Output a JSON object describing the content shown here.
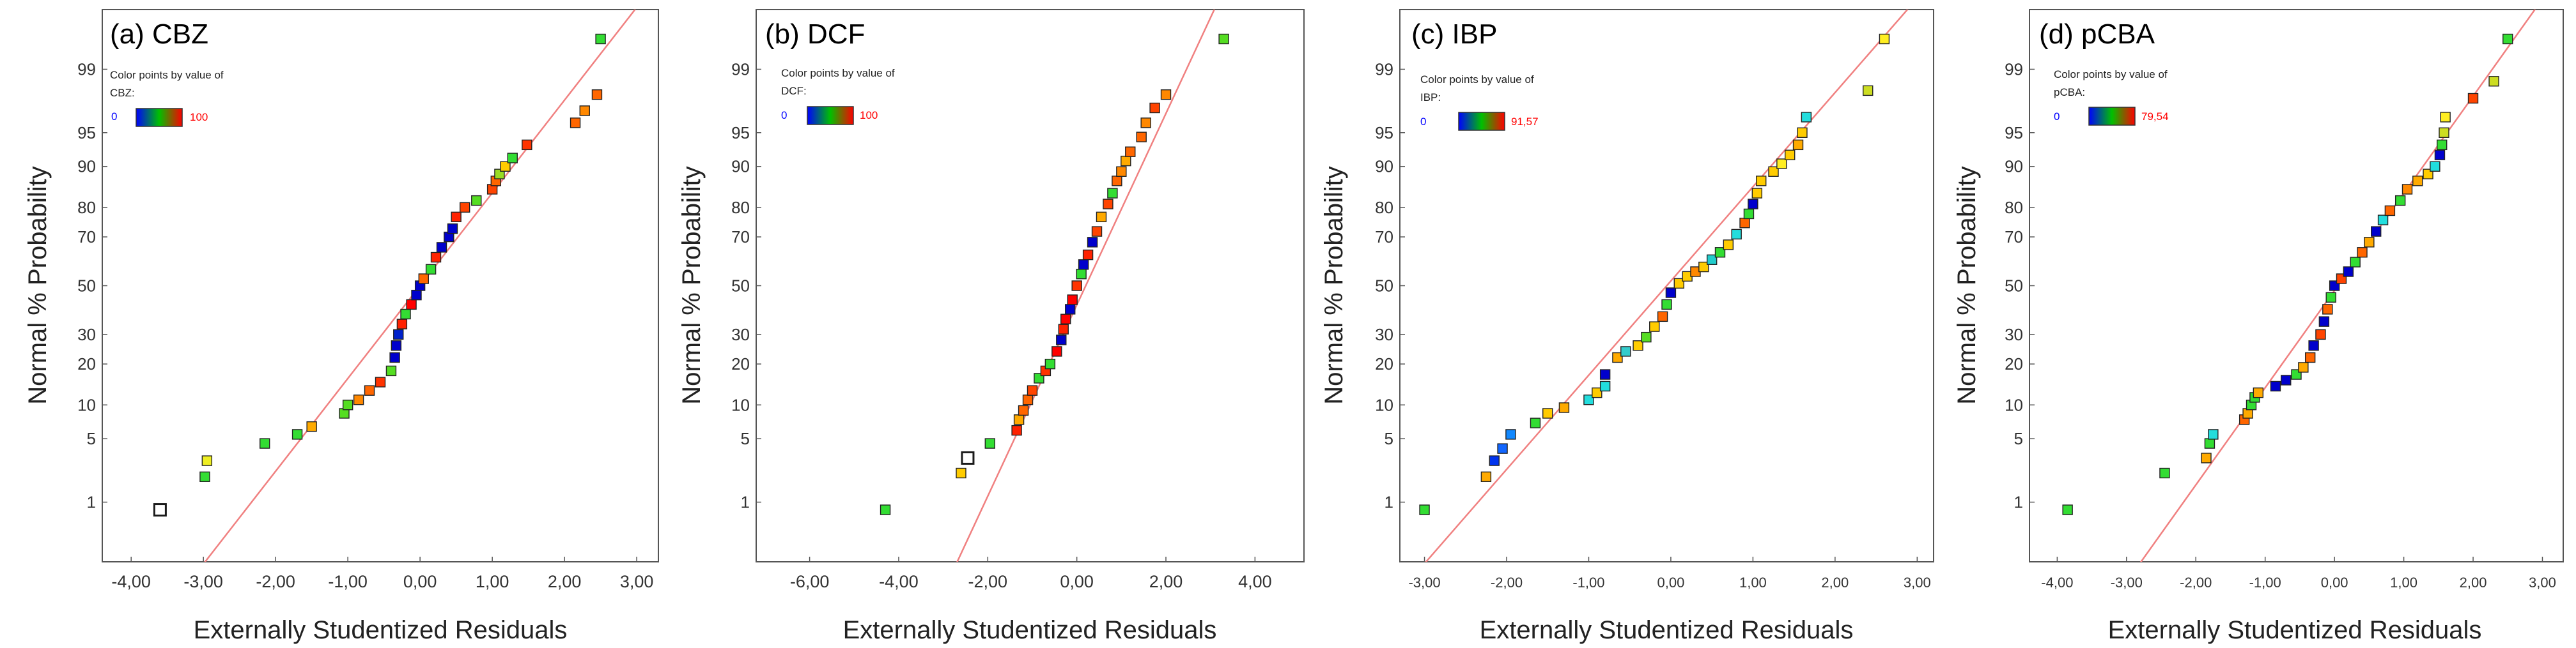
{
  "colors": {
    "ref_line": "#f08080",
    "frame": "#555555",
    "low_label": "#0000ff",
    "high_label": "#ff0000",
    "gradient": [
      "#0000ff",
      "#00c000",
      "#ff0000"
    ]
  },
  "chart_data": [
    {
      "type": "scatter",
      "title": "(a) CBZ",
      "xlabel": "Externally Studentized Residuals",
      "ylabel": "Normal % Probability",
      "xlim": [
        -4.4,
        3.3
      ],
      "x_ticks": [
        -4,
        -3,
        -2,
        -1,
        0,
        1,
        2,
        3
      ],
      "x_tick_labels": [
        "-4,00",
        "-3,00",
        "-2,00",
        "-1,00",
        "0,00",
        "1,00",
        "2,00",
        "3,00"
      ],
      "y_ticks": [
        1,
        5,
        10,
        20,
        30,
        50,
        70,
        80,
        90,
        95,
        99
      ],
      "y_tick_labels": [
        "1",
        "5",
        "10",
        "20",
        "30",
        "50",
        "70",
        "80",
        "90",
        "95",
        "99"
      ],
      "legend": {
        "title_line1": "Color points by value of",
        "title_line2": "CBZ:",
        "min_label": "0",
        "max_label": "100"
      },
      "reference_line": [
        [
          -3.3,
          0.05
        ],
        [
          3.3,
          99.95
        ]
      ],
      "points": [
        {
          "x": -3.6,
          "p": 0.8,
          "c": "hollow"
        },
        {
          "x": -2.98,
          "p": 2.0,
          "c": "#33dd33"
        },
        {
          "x": -2.95,
          "p": 3.0,
          "c": "#eeee22"
        },
        {
          "x": -2.15,
          "p": 4.5,
          "c": "#33dd33"
        },
        {
          "x": -1.7,
          "p": 5.5,
          "c": "#33dd33"
        },
        {
          "x": -1.5,
          "p": 6.5,
          "c": "#ffaa00"
        },
        {
          "x": -1.05,
          "p": 8.5,
          "c": "#55dd22"
        },
        {
          "x": -1.0,
          "p": 10.0,
          "c": "#55dd22"
        },
        {
          "x": -0.85,
          "p": 11.0,
          "c": "#ff8800"
        },
        {
          "x": -0.7,
          "p": 13.0,
          "c": "#ff6600"
        },
        {
          "x": -0.55,
          "p": 15.0,
          "c": "#ff3300"
        },
        {
          "x": -0.4,
          "p": 18.0,
          "c": "#55dd22"
        },
        {
          "x": -0.35,
          "p": 22.0,
          "c": "#0000cc"
        },
        {
          "x": -0.33,
          "p": 26.0,
          "c": "#0000cc"
        },
        {
          "x": -0.3,
          "p": 30.0,
          "c": "#0022cc"
        },
        {
          "x": -0.25,
          "p": 34.0,
          "c": "#ff2200"
        },
        {
          "x": -0.2,
          "p": 38.0,
          "c": "#33dd33"
        },
        {
          "x": -0.12,
          "p": 42.0,
          "c": "#ff0000"
        },
        {
          "x": -0.05,
          "p": 46.0,
          "c": "#0000cc"
        },
        {
          "x": 0.0,
          "p": 50.0,
          "c": "#0000cc"
        },
        {
          "x": 0.05,
          "p": 53.0,
          "c": "#ff6600"
        },
        {
          "x": 0.15,
          "p": 57.0,
          "c": "#33dd33"
        },
        {
          "x": 0.22,
          "p": 62.0,
          "c": "#ff2200"
        },
        {
          "x": 0.3,
          "p": 66.0,
          "c": "#0000cc"
        },
        {
          "x": 0.4,
          "p": 70.0,
          "c": "#0000cc"
        },
        {
          "x": 0.45,
          "p": 73.0,
          "c": "#0000cc"
        },
        {
          "x": 0.5,
          "p": 77.0,
          "c": "#ff2200"
        },
        {
          "x": 0.62,
          "p": 80.0,
          "c": "#ff4400"
        },
        {
          "x": 0.78,
          "p": 82.0,
          "c": "#55dd22"
        },
        {
          "x": 1.0,
          "p": 85.0,
          "c": "#ff4400"
        },
        {
          "x": 1.05,
          "p": 87.0,
          "c": "#ff6600"
        },
        {
          "x": 1.1,
          "p": 88.5,
          "c": "#99dd22"
        },
        {
          "x": 1.18,
          "p": 90.0,
          "c": "#ffcc00"
        },
        {
          "x": 1.28,
          "p": 91.5,
          "c": "#33dd33"
        },
        {
          "x": 1.48,
          "p": 93.5,
          "c": "#ff3300"
        },
        {
          "x": 2.15,
          "p": 96.0,
          "c": "#ff6600"
        },
        {
          "x": 2.28,
          "p": 97.0,
          "c": "#ff8800"
        },
        {
          "x": 2.45,
          "p": 98.0,
          "c": "#ff6600"
        },
        {
          "x": 2.5,
          "p": 99.6,
          "c": "#33dd33"
        }
      ]
    },
    {
      "type": "scatter",
      "title": "(b) DCF",
      "xlabel": "Externally Studentized Residuals",
      "ylabel": "Normal % Probability",
      "xlim": [
        -7.2,
        5.1
      ],
      "x_ticks": [
        -6,
        -4,
        -2,
        0,
        2,
        4
      ],
      "x_tick_labels": [
        "-6,00",
        "-4,00",
        "-2,00",
        "0,00",
        "2,00",
        "4,00"
      ],
      "y_ticks": [
        1,
        5,
        10,
        20,
        30,
        50,
        70,
        80,
        90,
        95,
        99
      ],
      "y_tick_labels": [
        "1",
        "5",
        "10",
        "20",
        "30",
        "50",
        "70",
        "80",
        "90",
        "95",
        "99"
      ],
      "legend": {
        "title_line1": "Color points by value of",
        "title_line2": "DCF:",
        "min_label": "0",
        "max_label": "100"
      },
      "reference_line": [
        [
          -3.0,
          0.05
        ],
        [
          3.4,
          99.95
        ]
      ],
      "points": [
        {
          "x": -4.3,
          "p": 0.8,
          "c": "#33dd33"
        },
        {
          "x": -2.6,
          "p": 2.2,
          "c": "#ffcc00"
        },
        {
          "x": -2.45,
          "p": 3.2,
          "c": "hollow"
        },
        {
          "x": -1.95,
          "p": 4.5,
          "c": "#33dd33"
        },
        {
          "x": -1.35,
          "p": 6.0,
          "c": "#ff2200"
        },
        {
          "x": -1.3,
          "p": 7.5,
          "c": "#ffaa00"
        },
        {
          "x": -1.2,
          "p": 9.0,
          "c": "#ff6600"
        },
        {
          "x": -1.1,
          "p": 11.0,
          "c": "#ff6600"
        },
        {
          "x": -1.0,
          "p": 13.0,
          "c": "#ff4400"
        },
        {
          "x": -0.85,
          "p": 16.0,
          "c": "#33dd33"
        },
        {
          "x": -0.7,
          "p": 18.0,
          "c": "#ff3300"
        },
        {
          "x": -0.6,
          "p": 20.0,
          "c": "#33dd33"
        },
        {
          "x": -0.45,
          "p": 24.0,
          "c": "#ff0000"
        },
        {
          "x": -0.35,
          "p": 28.0,
          "c": "#0000cc"
        },
        {
          "x": -0.3,
          "p": 32.0,
          "c": "#ff2200"
        },
        {
          "x": -0.25,
          "p": 36.0,
          "c": "#ff0000"
        },
        {
          "x": -0.15,
          "p": 40.0,
          "c": "#0000cc"
        },
        {
          "x": -0.1,
          "p": 44.0,
          "c": "#ff0000"
        },
        {
          "x": 0.0,
          "p": 50.0,
          "c": "#ff3300"
        },
        {
          "x": 0.1,
          "p": 55.0,
          "c": "#33dd33"
        },
        {
          "x": 0.15,
          "p": 59.0,
          "c": "#0000cc"
        },
        {
          "x": 0.25,
          "p": 63.0,
          "c": "#ff2200"
        },
        {
          "x": 0.35,
          "p": 68.0,
          "c": "#0000cc"
        },
        {
          "x": 0.45,
          "p": 72.0,
          "c": "#ff4400"
        },
        {
          "x": 0.55,
          "p": 77.0,
          "c": "#ffaa00"
        },
        {
          "x": 0.7,
          "p": 81.0,
          "c": "#ff4400"
        },
        {
          "x": 0.8,
          "p": 84.0,
          "c": "#33dd33"
        },
        {
          "x": 0.9,
          "p": 87.0,
          "c": "#ff6600"
        },
        {
          "x": 1.0,
          "p": 89.0,
          "c": "#ff8800"
        },
        {
          "x": 1.1,
          "p": 91.0,
          "c": "#ffaa00"
        },
        {
          "x": 1.2,
          "p": 92.5,
          "c": "#ff6600"
        },
        {
          "x": 1.45,
          "p": 94.5,
          "c": "#ff6600"
        },
        {
          "x": 1.55,
          "p": 96.0,
          "c": "#ff8800"
        },
        {
          "x": 1.75,
          "p": 97.2,
          "c": "#ff4400"
        },
        {
          "x": 2.0,
          "p": 98.0,
          "c": "#ff8800"
        },
        {
          "x": 3.3,
          "p": 99.6,
          "c": "#55dd22"
        }
      ]
    },
    {
      "type": "scatter",
      "title": "(c) IBP",
      "xlabel": "Externally Studentized Residuals",
      "ylabel": "Normal % Probability",
      "xlim": [
        -3.3,
        3.2
      ],
      "x_ticks": [
        -3,
        -2,
        -1,
        0,
        1,
        2,
        3
      ],
      "x_tick_labels": [
        "-3,00",
        "-2,00",
        "-1,00",
        "0,00",
        "1,00",
        "2,00",
        "3,00"
      ],
      "y_ticks": [
        1,
        5,
        10,
        20,
        30,
        50,
        70,
        80,
        90,
        95,
        99
      ],
      "y_tick_labels": [
        "1",
        "5",
        "10",
        "20",
        "30",
        "50",
        "70",
        "80",
        "90",
        "95",
        "99"
      ],
      "legend": {
        "title_line1": "Color points by value of",
        "title_line2": "IBP:",
        "min_label": "0",
        "max_label": "91,57"
      },
      "reference_line": [
        [
          -3.3,
          0.05
        ],
        [
          3.2,
          99.95
        ]
      ],
      "points": [
        {
          "x": -3.0,
          "p": 0.8,
          "c": "#33dd33"
        },
        {
          "x": -2.25,
          "p": 2.0,
          "c": "#ffaa00"
        },
        {
          "x": -2.15,
          "p": 3.0,
          "c": "#0033ee"
        },
        {
          "x": -2.05,
          "p": 4.0,
          "c": "#1166ff"
        },
        {
          "x": -1.95,
          "p": 5.5,
          "c": "#1188ff"
        },
        {
          "x": -1.65,
          "p": 7.0,
          "c": "#33dd33"
        },
        {
          "x": -1.5,
          "p": 8.5,
          "c": "#ffcc00"
        },
        {
          "x": -1.3,
          "p": 9.5,
          "c": "#ffaa00"
        },
        {
          "x": -1.0,
          "p": 11.0,
          "c": "#22dddd"
        },
        {
          "x": -0.9,
          "p": 12.5,
          "c": "#ffcc00"
        },
        {
          "x": -0.8,
          "p": 14.0,
          "c": "#22dddd"
        },
        {
          "x": -0.8,
          "p": 17.0,
          "c": "#0000cc"
        },
        {
          "x": -0.65,
          "p": 22.0,
          "c": "#ffaa00"
        },
        {
          "x": -0.55,
          "p": 24.0,
          "c": "#33cccc"
        },
        {
          "x": -0.4,
          "p": 26.0,
          "c": "#ffcc00"
        },
        {
          "x": -0.3,
          "p": 29.0,
          "c": "#55dd22"
        },
        {
          "x": -0.2,
          "p": 33.0,
          "c": "#ffcc00"
        },
        {
          "x": -0.1,
          "p": 37.0,
          "c": "#ff6600"
        },
        {
          "x": -0.05,
          "p": 42.0,
          "c": "#33dd33"
        },
        {
          "x": 0.0,
          "p": 47.0,
          "c": "#0000cc"
        },
        {
          "x": 0.1,
          "p": 51.0,
          "c": "#ffcc00"
        },
        {
          "x": 0.2,
          "p": 54.0,
          "c": "#ffcc00"
        },
        {
          "x": 0.3,
          "p": 56.0,
          "c": "#ff8800"
        },
        {
          "x": 0.4,
          "p": 58.0,
          "c": "#ffcc00"
        },
        {
          "x": 0.5,
          "p": 61.0,
          "c": "#22cccc"
        },
        {
          "x": 0.6,
          "p": 64.0,
          "c": "#33dd33"
        },
        {
          "x": 0.7,
          "p": 67.0,
          "c": "#ffcc00"
        },
        {
          "x": 0.8,
          "p": 71.0,
          "c": "#22dddd"
        },
        {
          "x": 0.9,
          "p": 75.0,
          "c": "#ff6600"
        },
        {
          "x": 0.95,
          "p": 78.0,
          "c": "#33dd33"
        },
        {
          "x": 1.0,
          "p": 81.0,
          "c": "#0000cc"
        },
        {
          "x": 1.05,
          "p": 84.0,
          "c": "#ffcc00"
        },
        {
          "x": 1.1,
          "p": 87.0,
          "c": "#ffcc00"
        },
        {
          "x": 1.25,
          "p": 89.0,
          "c": "#ffcc00"
        },
        {
          "x": 1.35,
          "p": 90.5,
          "c": "#ffee22"
        },
        {
          "x": 1.45,
          "p": 92.0,
          "c": "#ffcc00"
        },
        {
          "x": 1.55,
          "p": 93.5,
          "c": "#ffaa00"
        },
        {
          "x": 1.6,
          "p": 95.0,
          "c": "#ffcc00"
        },
        {
          "x": 1.65,
          "p": 96.5,
          "c": "#22dddd"
        },
        {
          "x": 2.4,
          "p": 98.2,
          "c": "#ccdd22"
        },
        {
          "x": 2.6,
          "p": 99.6,
          "c": "#ffee22"
        }
      ]
    },
    {
      "type": "scatter",
      "title": "(d) pCBA",
      "xlabel": "Externally Studentized Residuals",
      "ylabel": "Normal % Probability",
      "xlim": [
        -4.4,
        3.3
      ],
      "x_ticks": [
        -4,
        -3,
        -2,
        -1,
        0,
        1,
        2,
        3
      ],
      "x_tick_labels": [
        "-4,00",
        "-3,00",
        "-2,00",
        "-1,00",
        "0,00",
        "1,00",
        "2,00",
        "3,00"
      ],
      "y_ticks": [
        1,
        5,
        10,
        20,
        30,
        50,
        70,
        80,
        90,
        95,
        99
      ],
      "y_tick_labels": [
        "1",
        "5",
        "10",
        "20",
        "30",
        "50",
        "70",
        "80",
        "90",
        "95",
        "99"
      ],
      "legend": {
        "title_line1": "Color points by value of",
        "title_line2": "pCBA:",
        "min_label": "0",
        "max_label": "79,54"
      },
      "reference_line": [
        [
          -3.1,
          0.05
        ],
        [
          3.2,
          99.95
        ]
      ],
      "points": [
        {
          "x": -3.85,
          "p": 0.8,
          "c": "#33dd33"
        },
        {
          "x": -2.45,
          "p": 2.2,
          "c": "#33dd33"
        },
        {
          "x": -1.85,
          "p": 3.2,
          "c": "#ffaa00"
        },
        {
          "x": -1.8,
          "p": 4.5,
          "c": "#33dd33"
        },
        {
          "x": -1.75,
          "p": 5.5,
          "c": "#22dddd"
        },
        {
          "x": -1.3,
          "p": 7.5,
          "c": "#ff6600"
        },
        {
          "x": -1.25,
          "p": 8.5,
          "c": "#ffaa00"
        },
        {
          "x": -1.2,
          "p": 10.0,
          "c": "#33dd33"
        },
        {
          "x": -1.15,
          "p": 11.5,
          "c": "#33dd33"
        },
        {
          "x": -1.1,
          "p": 12.5,
          "c": "#ffaa00"
        },
        {
          "x": -0.85,
          "p": 14.0,
          "c": "#0000cc"
        },
        {
          "x": -0.7,
          "p": 15.5,
          "c": "#0000cc"
        },
        {
          "x": -0.55,
          "p": 17.0,
          "c": "#33dd33"
        },
        {
          "x": -0.45,
          "p": 19.0,
          "c": "#ffaa00"
        },
        {
          "x": -0.35,
          "p": 22.0,
          "c": "#ff6600"
        },
        {
          "x": -0.3,
          "p": 26.0,
          "c": "#0000cc"
        },
        {
          "x": -0.2,
          "p": 30.0,
          "c": "#ff4400"
        },
        {
          "x": -0.15,
          "p": 35.0,
          "c": "#0000cc"
        },
        {
          "x": -0.1,
          "p": 40.0,
          "c": "#ff6600"
        },
        {
          "x": -0.05,
          "p": 45.0,
          "c": "#33dd33"
        },
        {
          "x": 0.0,
          "p": 50.0,
          "c": "#0000cc"
        },
        {
          "x": 0.1,
          "p": 53.0,
          "c": "#ff4400"
        },
        {
          "x": 0.2,
          "p": 56.0,
          "c": "#0000cc"
        },
        {
          "x": 0.3,
          "p": 60.0,
          "c": "#33dd33"
        },
        {
          "x": 0.4,
          "p": 64.0,
          "c": "#ff6600"
        },
        {
          "x": 0.5,
          "p": 68.0,
          "c": "#ffaa00"
        },
        {
          "x": 0.6,
          "p": 72.0,
          "c": "#0000cc"
        },
        {
          "x": 0.7,
          "p": 76.0,
          "c": "#22dddd"
        },
        {
          "x": 0.8,
          "p": 79.0,
          "c": "#ff6600"
        },
        {
          "x": 0.95,
          "p": 82.0,
          "c": "#33dd33"
        },
        {
          "x": 1.05,
          "p": 85.0,
          "c": "#ff8800"
        },
        {
          "x": 1.2,
          "p": 87.0,
          "c": "#ffaa00"
        },
        {
          "x": 1.35,
          "p": 88.5,
          "c": "#ffcc00"
        },
        {
          "x": 1.45,
          "p": 90.0,
          "c": "#22dddd"
        },
        {
          "x": 1.52,
          "p": 92.0,
          "c": "#0000cc"
        },
        {
          "x": 1.55,
          "p": 93.5,
          "c": "#33dd33"
        },
        {
          "x": 1.58,
          "p": 95.0,
          "c": "#ccdd22"
        },
        {
          "x": 1.6,
          "p": 96.5,
          "c": "#ffee22"
        },
        {
          "x": 2.0,
          "p": 97.8,
          "c": "#ff4400"
        },
        {
          "x": 2.3,
          "p": 98.6,
          "c": "#ccdd22"
        },
        {
          "x": 2.5,
          "p": 99.6,
          "c": "#33dd33"
        }
      ]
    }
  ]
}
